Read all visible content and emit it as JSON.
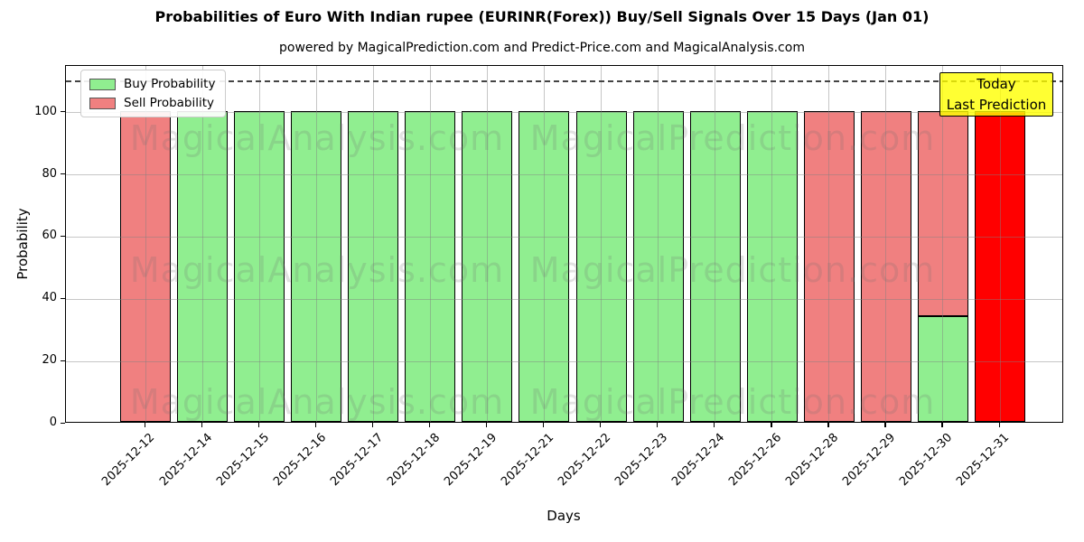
{
  "title": "Probabilities of Euro With Indian rupee (EURINR(Forex)) Buy/Sell Signals Over 15 Days (Jan 01)",
  "subtitle": "powered by MagicalPrediction.com and Predict-Price.com and MagicalAnalysis.com",
  "legend": {
    "items": [
      {
        "label": "Buy Probability",
        "color": "#90EE90"
      },
      {
        "label": "Sell Probability",
        "color": "#F08080"
      }
    ]
  },
  "annotation": {
    "line1": "Today",
    "line2": "Last Prediction",
    "bg_color": "#FFFF00"
  },
  "watermarks": [
    "MagicalAnalysis.com",
    "MagicalPrediction.com"
  ],
  "colors": {
    "buy": "#90EE90",
    "sell": "#F08080",
    "today_bar": "#FF0000",
    "grid": "#808080",
    "dashed_line": "#444444"
  },
  "chart_data": {
    "type": "bar",
    "stacked": true,
    "title": "Probabilities of Euro With Indian rupee (EURINR(Forex)) Buy/Sell Signals Over 15 Days (Jan 01)",
    "xlabel": "Days",
    "ylabel": "Probability",
    "categories": [
      "2025-12-12",
      "2025-12-14",
      "2025-12-15",
      "2025-12-16",
      "2025-12-17",
      "2025-12-18",
      "2025-12-19",
      "2025-12-21",
      "2025-12-22",
      "2025-12-23",
      "2025-12-24",
      "2025-12-26",
      "2025-12-28",
      "2025-12-29",
      "2025-12-30",
      "2025-12-31"
    ],
    "series": [
      {
        "name": "Buy Probability",
        "color": "#90EE90",
        "values": [
          0,
          100,
          100,
          100,
          100,
          100,
          100,
          100,
          100,
          100,
          100,
          100,
          0,
          0,
          34,
          0
        ]
      },
      {
        "name": "Sell Probability",
        "color": "#F08080",
        "values": [
          100,
          0,
          0,
          0,
          0,
          0,
          0,
          0,
          0,
          0,
          0,
          0,
          100,
          100,
          66,
          0
        ]
      },
      {
        "name": "Today / Last Prediction",
        "color": "#FF0000",
        "values": [
          0,
          0,
          0,
          0,
          0,
          0,
          0,
          0,
          0,
          0,
          0,
          0,
          0,
          0,
          0,
          100
        ]
      }
    ],
    "ylim": [
      0,
      115
    ],
    "yticks": [
      0,
      20,
      40,
      60,
      80,
      100
    ],
    "dashed_line_y": 110,
    "grid": true,
    "legend_position": "upper-left"
  }
}
